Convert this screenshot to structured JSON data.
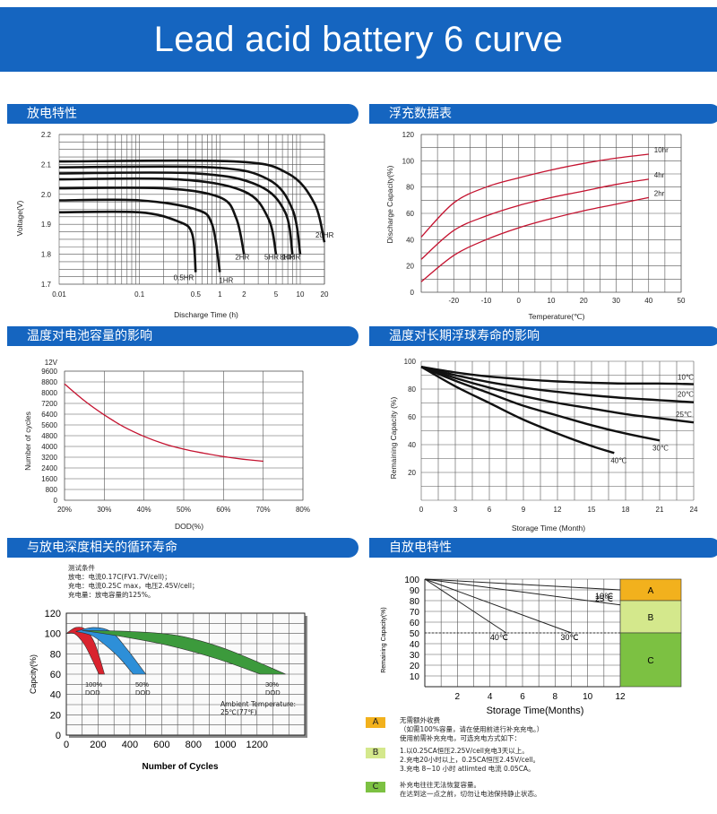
{
  "title": "Lead acid battery 6 curve",
  "colors": {
    "banner": "#1565c0",
    "curve_red": "#c4122f",
    "zone_a": "#f2b11d",
    "zone_b": "#d4e88c",
    "zone_c": "#7cc142"
  },
  "sections": [
    {
      "label": "放电特性"
    },
    {
      "label": "浮充数据表"
    },
    {
      "label": "温度对电池容量的影响"
    },
    {
      "label": "温度对长期浮球寿命的影响"
    },
    {
      "label": "与放电深度相关的循环寿命"
    },
    {
      "label": "自放电特性"
    }
  ],
  "chart_data": [
    {
      "type": "line",
      "xlabel": "Discharge Time (h)",
      "ylabel": "Voltage(V)",
      "xscale": "log",
      "xlim": [
        0.01,
        20
      ],
      "ylim": [
        1.7,
        2.2
      ],
      "xticks": [
        "0.01",
        "0.1",
        "0.5",
        "1",
        "2",
        "5",
        "10",
        "20"
      ],
      "yticks": [
        "1.7",
        "1.8",
        "1.9",
        "2.0",
        "2.1",
        "2.2"
      ],
      "series": [
        {
          "name": "0.5HR",
          "x": [
            0.01,
            0.1,
            0.3,
            0.45,
            0.5
          ],
          "y": [
            1.94,
            1.94,
            1.91,
            1.87,
            1.74
          ]
        },
        {
          "name": "1HR",
          "x": [
            0.01,
            0.1,
            0.5,
            0.8,
            1.0
          ],
          "y": [
            1.98,
            1.98,
            1.95,
            1.9,
            1.74
          ]
        },
        {
          "name": "2HR",
          "x": [
            0.01,
            0.2,
            1.0,
            1.6,
            2.0
          ],
          "y": [
            2.02,
            2.02,
            1.99,
            1.92,
            1.8
          ]
        },
        {
          "name": "5HR",
          "x": [
            0.01,
            0.3,
            2.0,
            4.0,
            5.0
          ],
          "y": [
            2.05,
            2.05,
            2.01,
            1.92,
            1.8
          ]
        },
        {
          "name": "8HR",
          "x": [
            0.01,
            0.5,
            3.0,
            6.5,
            8.0
          ],
          "y": [
            2.07,
            2.07,
            2.03,
            1.94,
            1.8
          ]
        },
        {
          "name": "10HR",
          "x": [
            0.01,
            0.8,
            4.0,
            8.0,
            10.0
          ],
          "y": [
            2.09,
            2.09,
            2.05,
            1.95,
            1.8
          ]
        },
        {
          "name": "20HR",
          "x": [
            0.01,
            1.5,
            7.0,
            15.0,
            20.0
          ],
          "y": [
            2.11,
            2.11,
            2.07,
            1.97,
            1.84
          ]
        }
      ]
    },
    {
      "type": "line",
      "xlabel": "Temperature(℃)",
      "ylabel": "Discharge Capacity(%)",
      "xlim": [
        -30,
        50
      ],
      "ylim": [
        0,
        120
      ],
      "xticks": [
        "-20",
        "-10",
        "0",
        "10",
        "20",
        "30",
        "40",
        "50"
      ],
      "yticks": [
        "0",
        "20",
        "40",
        "60",
        "80",
        "100",
        "120"
      ],
      "series": [
        {
          "name": "10hr",
          "x": [
            -30,
            -20,
            -10,
            0,
            10,
            20,
            30,
            40
          ],
          "y": [
            42,
            68,
            80,
            87,
            93,
            98,
            102,
            105
          ]
        },
        {
          "name": "4hr",
          "x": [
            -30,
            -20,
            -10,
            0,
            10,
            20,
            30,
            40
          ],
          "y": [
            25,
            47,
            58,
            66,
            72,
            77,
            82,
            86
          ]
        },
        {
          "name": "2hr",
          "x": [
            -30,
            -20,
            -10,
            0,
            10,
            20,
            30,
            40
          ],
          "y": [
            8,
            28,
            40,
            49,
            56,
            62,
            67,
            72
          ]
        }
      ]
    },
    {
      "type": "line",
      "xlabel": "DOD(%)",
      "ylabel": "Number of cycles",
      "ylim": [
        0,
        9600
      ],
      "y_unit_label": "12V",
      "xticks": [
        "20%",
        "30%",
        "40%",
        "50%",
        "60%",
        "70%",
        "80%"
      ],
      "yticks": [
        "0",
        "800",
        "1600",
        "2400",
        "3200",
        "4000",
        "4800",
        "5600",
        "6400",
        "7200",
        "8000",
        "8800",
        "9600"
      ],
      "series": [
        {
          "x": [
            20,
            25,
            30,
            35,
            40,
            45,
            50,
            55,
            60,
            65,
            70
          ],
          "y": [
            8650,
            7400,
            6350,
            5450,
            4750,
            4200,
            3800,
            3500,
            3250,
            3050,
            2900
          ]
        }
      ]
    },
    {
      "type": "line",
      "xlabel": "Storage Time (Month)",
      "ylabel": "Remaining Capacity (%)",
      "xlim": [
        0,
        24
      ],
      "ylim": [
        0,
        100
      ],
      "xticks": [
        "0",
        "3",
        "6",
        "9",
        "12",
        "15",
        "18",
        "21",
        "24"
      ],
      "yticks": [
        "0",
        "20",
        "40",
        "60",
        "80",
        "100"
      ],
      "series": [
        {
          "name": "10℃",
          "x": [
            0,
            3,
            6,
            9,
            12,
            15,
            18,
            21,
            24
          ],
          "y": [
            96,
            92,
            89,
            87,
            85.5,
            84.5,
            84,
            84,
            83.5
          ]
        },
        {
          "name": "20℃",
          "x": [
            0,
            3,
            6,
            9,
            12,
            15,
            18,
            21,
            24
          ],
          "y": [
            96,
            90,
            85,
            81,
            78,
            75.5,
            73.5,
            72,
            70.5
          ]
        },
        {
          "name": "25℃",
          "x": [
            0,
            3,
            6,
            9,
            12,
            15,
            18,
            21,
            24
          ],
          "y": [
            96,
            88,
            81,
            75,
            70,
            66,
            62,
            59,
            56
          ]
        },
        {
          "name": "30℃",
          "x": [
            0,
            3,
            6,
            9,
            12,
            15,
            18,
            21
          ],
          "y": [
            96,
            86,
            77,
            68,
            61,
            54,
            48,
            43
          ]
        },
        {
          "name": "40℃",
          "x": [
            0,
            3,
            6,
            9,
            12,
            15,
            17
          ],
          "y": [
            96,
            82,
            70,
            58,
            48,
            39,
            34
          ]
        }
      ]
    },
    {
      "type": "area",
      "xlabel": "Number of Cycles",
      "ylabel": "Capcity(%)",
      "xlim": [
        0,
        1500
      ],
      "ylim": [
        0,
        120
      ],
      "xticks": [
        "0",
        "200",
        "400",
        "600",
        "800",
        "1000",
        "1200"
      ],
      "yticks": [
        "0",
        "20",
        "40",
        "60",
        "80",
        "100",
        "120"
      ],
      "test_conditions": [
        "测试条件",
        "放电：电流0.17C(FV1.7V/cell)；",
        "充电：电流0.25C max，电压2.45V/cell；",
        "充电量：放电容量的125%。"
      ],
      "ambient": [
        "Ambient Temperature:",
        "25℃(77℉)"
      ],
      "series": [
        {
          "name": "100%\nDOD",
          "label": [
            "100%",
            "DOD"
          ],
          "color": "#d9232e",
          "upper": [
            [
              0,
              100
            ],
            [
              60,
              106
            ],
            [
              120,
              104
            ],
            [
              180,
              90
            ],
            [
              240,
              60
            ]
          ],
          "lower": [
            [
              0,
              100
            ],
            [
              50,
              100
            ],
            [
              110,
              90
            ],
            [
              160,
              75
            ],
            [
              205,
              60
            ]
          ]
        },
        {
          "name": "50%\nDOD",
          "label": [
            "50%",
            "DOD"
          ],
          "color": "#2d8fd8",
          "upper": [
            [
              60,
              102
            ],
            [
              170,
              106
            ],
            [
              280,
              102
            ],
            [
              380,
              85
            ],
            [
              500,
              60
            ]
          ],
          "lower": [
            [
              60,
              102
            ],
            [
              160,
              98
            ],
            [
              250,
              88
            ],
            [
              340,
              75
            ],
            [
              420,
              60
            ]
          ]
        },
        {
          "name": "30%\nDOD",
          "label": [
            "30%",
            "DOD"
          ],
          "color": "#3c9a3c",
          "upper": [
            [
              100,
              103
            ],
            [
              400,
              102
            ],
            [
              700,
              98
            ],
            [
              1000,
              85
            ],
            [
              1380,
              60
            ]
          ],
          "lower": [
            [
              100,
              103
            ],
            [
              350,
              97
            ],
            [
              650,
              88
            ],
            [
              950,
              75
            ],
            [
              1220,
              60
            ]
          ]
        }
      ]
    },
    {
      "type": "line",
      "xlabel": "Storage Time(Months)",
      "ylabel": "Remaining Capacity(%)",
      "xlim": [
        0,
        12
      ],
      "ylim": [
        0,
        100
      ],
      "xticks": [
        "2",
        "4",
        "6",
        "8",
        "10",
        "12"
      ],
      "yticks": [
        "10",
        "20",
        "30",
        "40",
        "50",
        "60",
        "70",
        "80",
        "90",
        "100"
      ],
      "series": [
        {
          "name": "10℃",
          "x": [
            0,
            12
          ],
          "y": [
            100,
            90
          ]
        },
        {
          "name": "25℃",
          "x": [
            0,
            12
          ],
          "y": [
            100,
            76
          ]
        },
        {
          "name": "30℃",
          "x": [
            0,
            9
          ],
          "y": [
            100,
            50
          ]
        },
        {
          "name": "40℃",
          "x": [
            0,
            5
          ],
          "y": [
            100,
            50
          ]
        }
      ],
      "zones": [
        {
          "name": "A",
          "from": 80,
          "to": 100
        },
        {
          "name": "B",
          "from": 50,
          "to": 80
        },
        {
          "name": "C",
          "from": 0,
          "to": 50
        }
      ],
      "legend": [
        {
          "key": "A",
          "lines": [
            "无需额外收费",
            "（如需100%容量，请在使用前进行补充充电。）",
            "使用前需补充充电，可选充电方式如下："
          ]
        },
        {
          "key": "B",
          "lines": [
            "1.以0.25CA恒压2.25V/cell充电3天以上。",
            "2.充电20小时以上，0.25CA恒压2.45V/cell。",
            "3.充电 8~10 小时 atlimted 电流 0.05CA。"
          ]
        },
        {
          "key": "C",
          "lines": [
            "补充电往往无法恢复容量。",
            "在达到这一点之前，切勿让电池保持静止状态。"
          ]
        }
      ]
    }
  ]
}
